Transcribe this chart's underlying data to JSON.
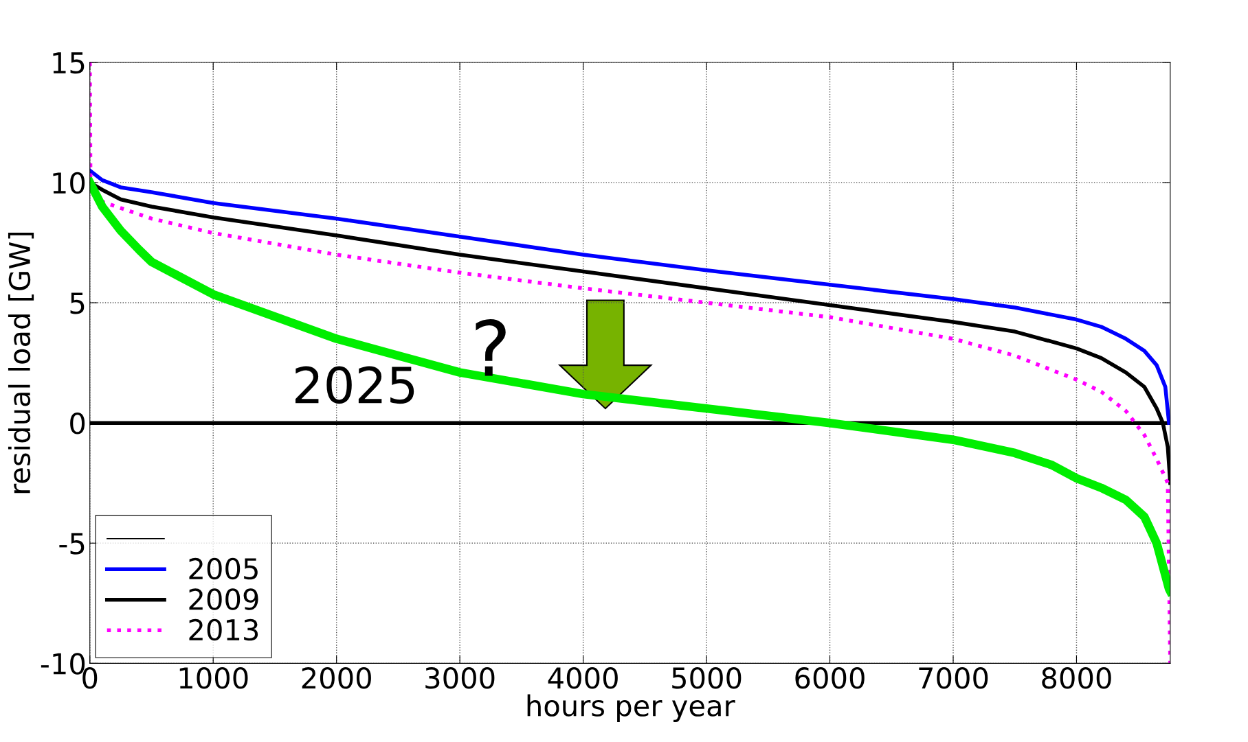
{
  "chart_data": {
    "type": "line",
    "xlabel": "hours per year",
    "ylabel": "residual load [GW]",
    "xlim": [
      0,
      8760
    ],
    "ylim": [
      -10,
      15
    ],
    "xticks": [
      0,
      1000,
      2000,
      3000,
      4000,
      5000,
      6000,
      7000,
      8000
    ],
    "yticks": [
      -10,
      -5,
      0,
      5,
      10,
      15
    ],
    "grid": true,
    "legend": "bottom left",
    "series": [
      {
        "name": "2005",
        "color": "#0000ff",
        "line_style": "solid",
        "x": [
          0,
          100,
          250,
          500,
          1000,
          2000,
          3000,
          4000,
          5000,
          6000,
          7000,
          7500,
          8000,
          8200,
          8400,
          8550,
          8650,
          8720,
          8750
        ],
        "values": [
          10.5,
          10.1,
          9.8,
          9.6,
          9.15,
          8.5,
          7.75,
          7.0,
          6.35,
          5.75,
          5.15,
          4.8,
          4.3,
          4.0,
          3.5,
          3.0,
          2.4,
          1.5,
          0
        ]
      },
      {
        "name": "2009",
        "color": "#000000",
        "line_style": "solid",
        "x": [
          0,
          100,
          250,
          500,
          1000,
          2000,
          3000,
          4000,
          5000,
          6000,
          7000,
          7500,
          8000,
          8200,
          8400,
          8550,
          8650,
          8700,
          8740,
          8760
        ],
        "values": [
          10.0,
          9.7,
          9.3,
          9.0,
          8.55,
          7.8,
          7.0,
          6.3,
          5.6,
          4.9,
          4.2,
          3.8,
          3.1,
          2.7,
          2.1,
          1.5,
          0.6,
          0,
          -1,
          -2.5
        ]
      },
      {
        "name": "2013",
        "color": "#ff00ff",
        "line_style": "dotted",
        "x": [
          0,
          5,
          100,
          500,
          1000,
          2000,
          3000,
          4000,
          5000,
          6000,
          7000,
          7500,
          8000,
          8200,
          8400,
          8550,
          8650,
          8740,
          8760
        ],
        "values": [
          15,
          10,
          9.2,
          8.5,
          7.9,
          7.0,
          6.25,
          5.6,
          5.0,
          4.4,
          3.5,
          2.8,
          1.8,
          1.3,
          0.5,
          -0.5,
          -1.5,
          -2.5,
          -10
        ]
      },
      {
        "color": "#00ee00",
        "line_style": "solid",
        "x": [
          0,
          100,
          250,
          400,
          500,
          1000,
          2000,
          3000,
          4000,
          5000,
          6000,
          7000,
          7500,
          7800,
          8000,
          8200,
          8400,
          8550,
          8650,
          8750,
          8760
        ],
        "values": [
          10,
          9.0,
          8.0,
          7.2,
          6.7,
          5.35,
          3.5,
          2.1,
          1.2,
          0.6,
          0,
          -0.7,
          -1.25,
          -1.75,
          -2.3,
          -2.7,
          -3.2,
          -3.9,
          -5.0,
          -6.9,
          -7
        ]
      }
    ],
    "ref_lines": [
      {
        "axis": "y",
        "value": 0,
        "color": "#000000",
        "line_style": "solid"
      }
    ],
    "annotations": [
      "2025",
      "?"
    ]
  }
}
